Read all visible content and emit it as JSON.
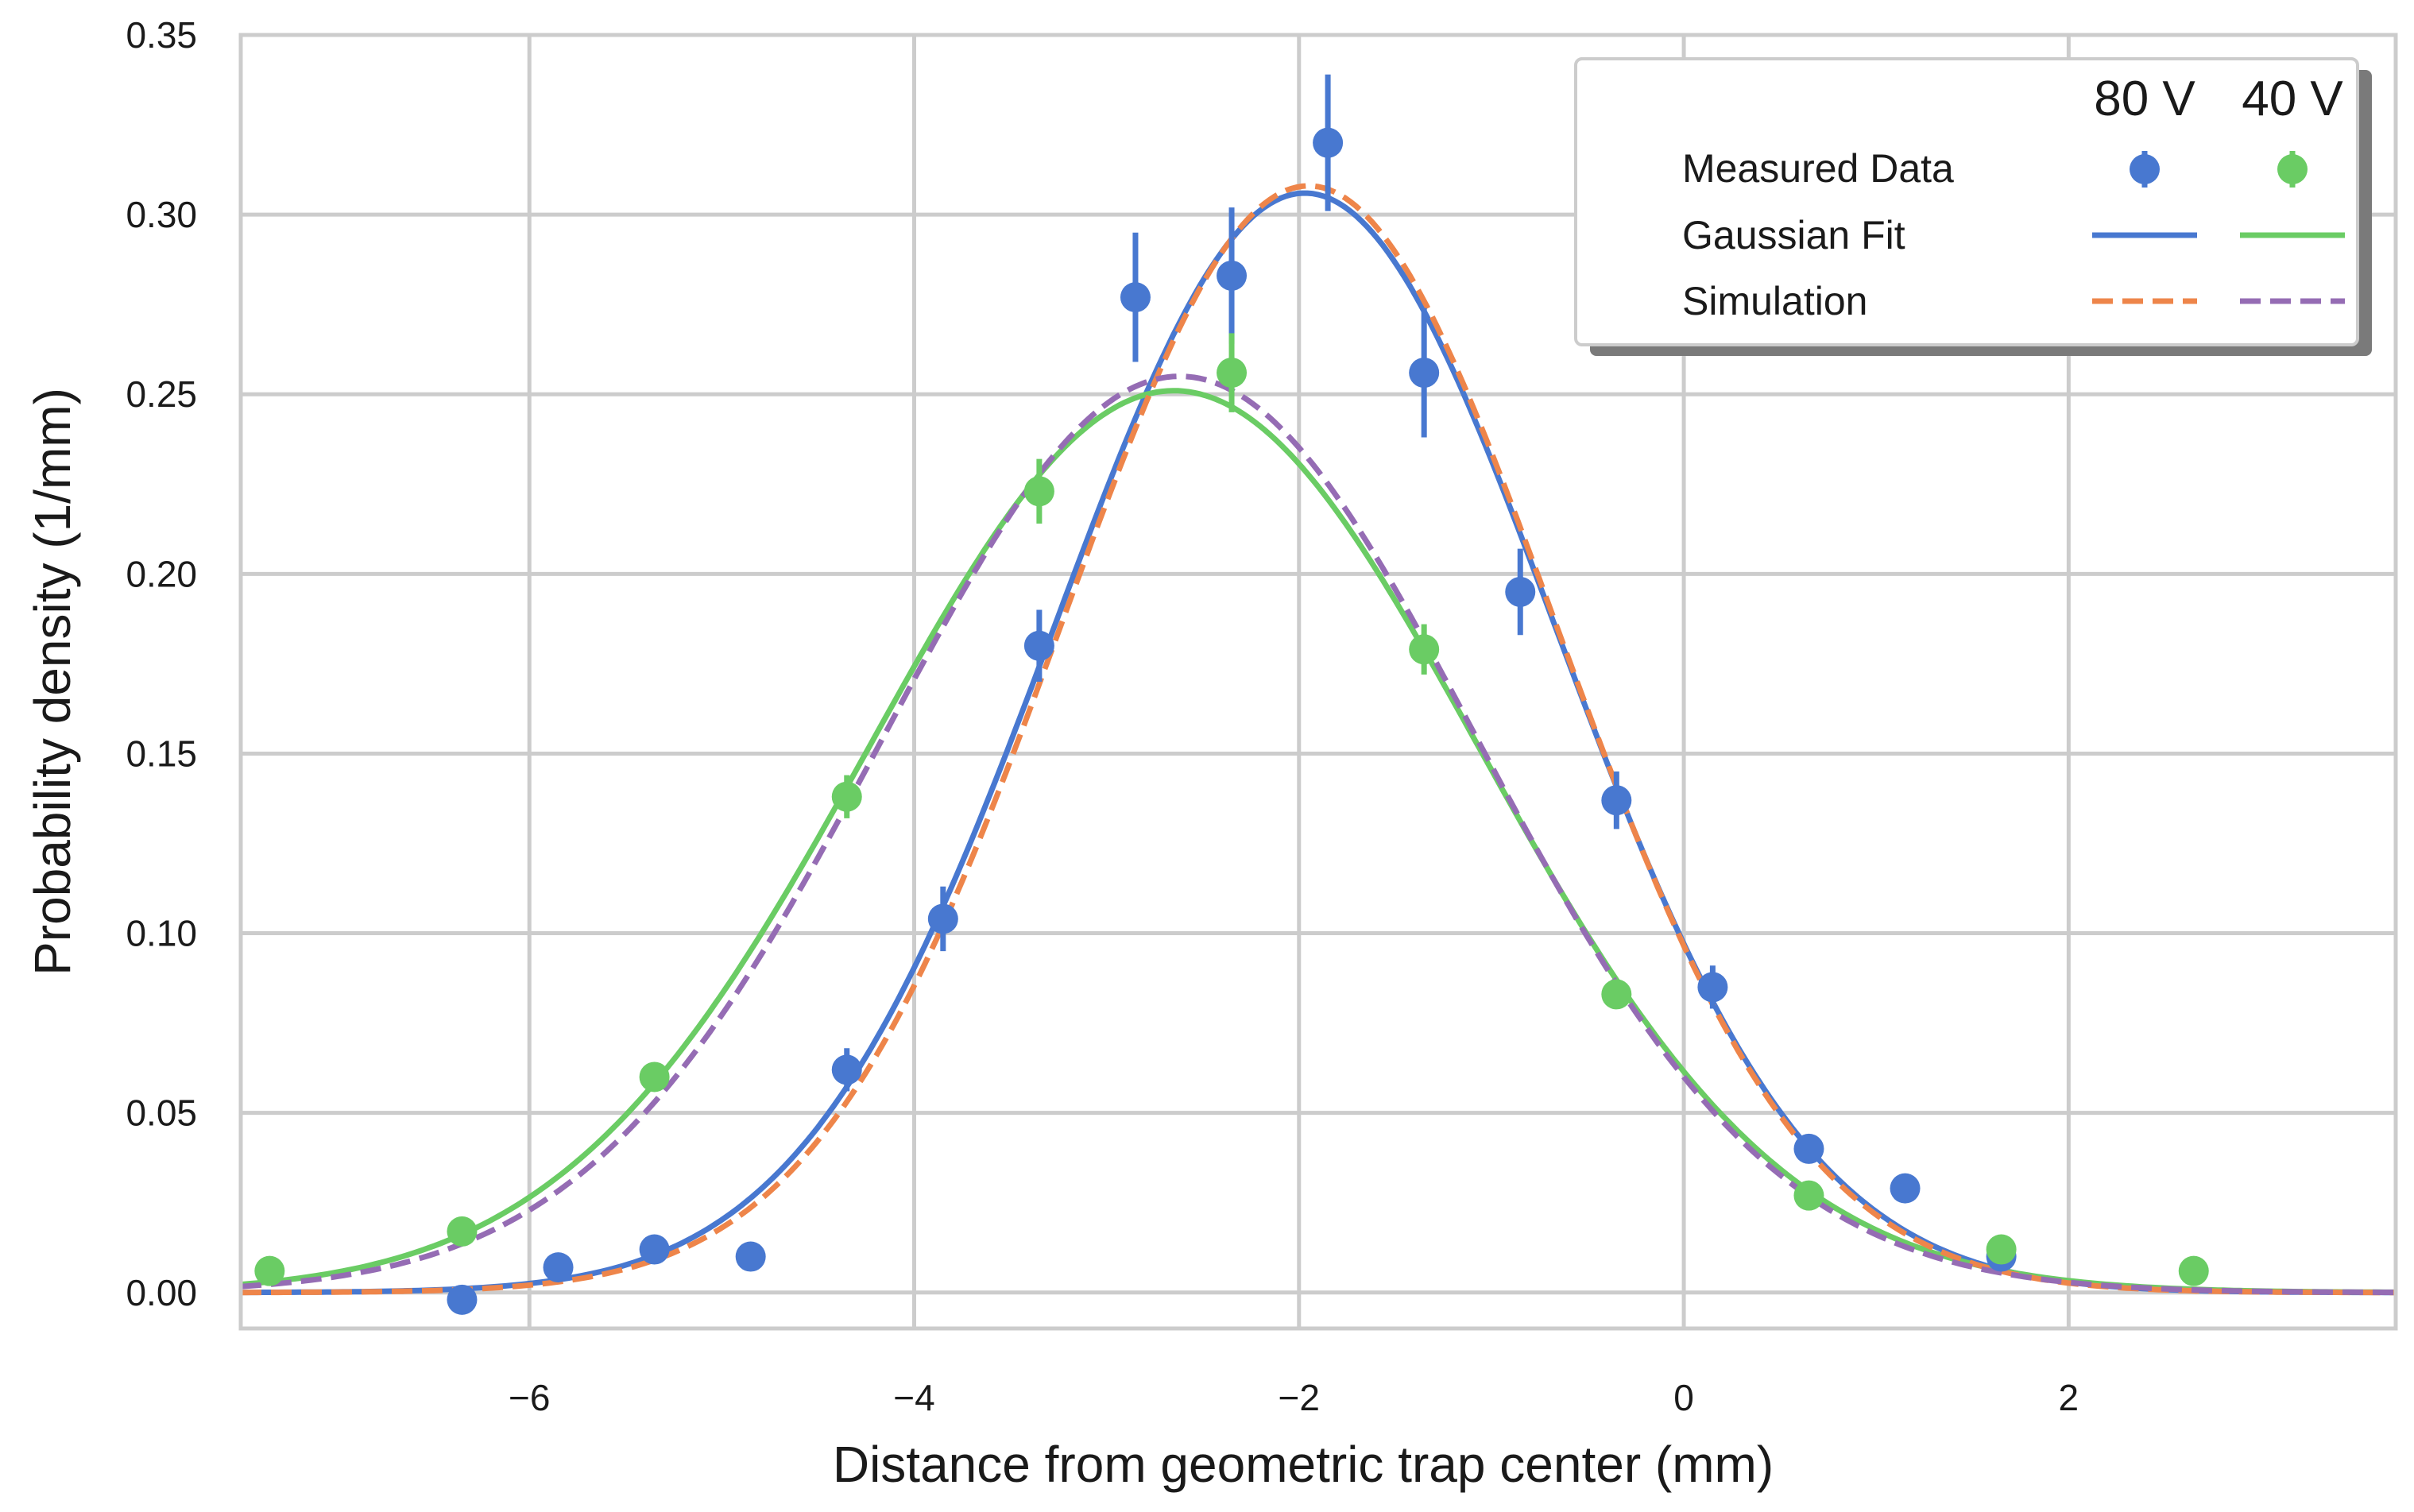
{
  "chart_data": {
    "type": "scatter",
    "xlabel": "Distance from geometric trap center (mm)",
    "ylabel": "Probability density (1/mm)",
    "xlim": [
      -7.5,
      3.7
    ],
    "ylim": [
      -0.01,
      0.35
    ],
    "grid": true,
    "x_ticks": [
      -6,
      -4,
      -2,
      0,
      2
    ],
    "x_tick_labels": [
      "−6",
      "−4",
      "−2",
      "0",
      "2"
    ],
    "y_ticks": [
      0.0,
      0.05,
      0.1,
      0.15,
      0.2,
      0.25,
      0.3,
      0.35
    ],
    "y_tick_labels": [
      "0.00",
      "0.05",
      "0.10",
      "0.15",
      "0.20",
      "0.25",
      "0.30",
      "0.35"
    ],
    "legend": {
      "placement": "top-right",
      "columns": [
        "80 V",
        "40 V"
      ],
      "rows": [
        "Measured Data",
        "Gaussian Fit",
        "Simulation"
      ]
    },
    "series": [
      {
        "name": "Measured Data 80 V",
        "kind": "errorbar",
        "color": "#4878d0",
        "x": [
          -6.35,
          -5.85,
          -5.35,
          -4.85,
          -4.35,
          -3.85,
          -3.35,
          -2.85,
          -2.35,
          -1.85,
          -1.35,
          -0.85,
          -0.35,
          0.15,
          0.65,
          1.15,
          1.65
        ],
        "y": [
          -0.002,
          0.007,
          0.012,
          0.01,
          0.062,
          0.104,
          0.18,
          0.277,
          0.283,
          0.32,
          0.256,
          0.195,
          0.137,
          0.085,
          0.04,
          0.029,
          0.01
        ],
        "yerr": [
          0.002,
          0.003,
          0.003,
          0.003,
          0.006,
          0.009,
          0.01,
          0.018,
          0.019,
          0.019,
          0.018,
          0.012,
          0.008,
          0.006,
          0.004,
          0.003,
          0.002
        ]
      },
      {
        "name": "Measured Data 40 V",
        "kind": "errorbar",
        "color": "#6acc64",
        "x": [
          -7.35,
          -6.35,
          -5.35,
          -4.35,
          -3.35,
          -2.35,
          -1.35,
          -0.35,
          0.65,
          1.65,
          2.65
        ],
        "y": [
          0.006,
          0.017,
          0.06,
          0.138,
          0.223,
          0.256,
          0.179,
          0.083,
          0.027,
          0.012,
          0.006
        ],
        "yerr": [
          0.002,
          0.003,
          0.003,
          0.006,
          0.009,
          0.011,
          0.007,
          0.004,
          0.003,
          0.002,
          0.002
        ]
      },
      {
        "name": "Gaussian Fit 80 V",
        "kind": "line",
        "style": "solid",
        "color": "#4878d0",
        "model": "gaussian",
        "amplitude": 0.306,
        "mean": -1.97,
        "sigma": 1.3
      },
      {
        "name": "Gaussian Fit 40 V",
        "kind": "line",
        "style": "solid",
        "color": "#6acc64",
        "model": "gaussian",
        "amplitude": 0.251,
        "mean": -2.65,
        "sigma": 1.58
      },
      {
        "name": "Simulation 80 V",
        "kind": "line",
        "style": "dashed",
        "color": "#ee854a",
        "model": "gaussian",
        "amplitude": 0.308,
        "mean": -1.95,
        "sigma": 1.28
      },
      {
        "name": "Simulation 40 V",
        "kind": "line",
        "style": "dashed",
        "color": "#956cb4",
        "model": "gaussian",
        "amplitude": 0.255,
        "mean": -2.62,
        "sigma": 1.54
      }
    ]
  }
}
